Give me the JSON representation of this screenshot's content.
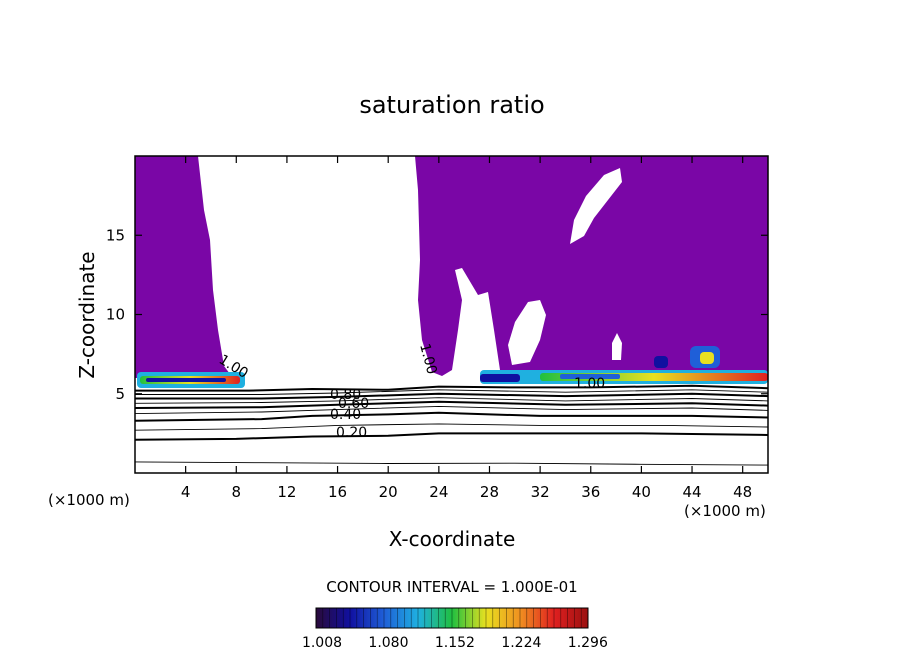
{
  "chart_data": {
    "type": "contour",
    "title": "saturation ratio",
    "xlabel": "X-coordinate",
    "ylabel": "Z-coordinate",
    "x_unit_left": "(×1000 m)",
    "x_unit_right": "(×1000 m)",
    "xlim": [
      0,
      50
    ],
    "ylim": [
      0,
      20
    ],
    "xticks": [
      4,
      8,
      12,
      16,
      20,
      24,
      28,
      32,
      36,
      40,
      44,
      48
    ],
    "yticks": [
      5,
      10,
      15
    ],
    "xtick_labels": [
      "4",
      "8",
      "12",
      "16",
      "20",
      "24",
      "28",
      "32",
      "36",
      "40",
      "44",
      "48"
    ],
    "ytick_labels": [
      "5",
      "10",
      "15"
    ],
    "contour_interval_text": "CONTOUR INTERVAL = 1.000E-01",
    "contour_labels": [
      "1.00",
      "1.00",
      "1.00",
      "0.80",
      "0.60",
      "0.40",
      "0.20"
    ],
    "contour_lines": [
      {
        "level": 0.1,
        "heavy": false,
        "points": [
          [
            0,
            0.7
          ],
          [
            10,
            0.65
          ],
          [
            20,
            0.6
          ],
          [
            30,
            0.62
          ],
          [
            40,
            0.55
          ],
          [
            50,
            0.5
          ]
        ]
      },
      {
        "level": 0.2,
        "heavy": true,
        "points": [
          [
            0,
            2.1
          ],
          [
            8,
            2.15
          ],
          [
            14,
            2.3
          ],
          [
            20,
            2.35
          ],
          [
            24,
            2.5
          ],
          [
            30,
            2.5
          ],
          [
            40,
            2.5
          ],
          [
            50,
            2.4
          ]
        ]
      },
      {
        "level": 0.3,
        "heavy": false,
        "points": [
          [
            0,
            2.7
          ],
          [
            10,
            2.8
          ],
          [
            16,
            3.0
          ],
          [
            24,
            3.1
          ],
          [
            32,
            3.0
          ],
          [
            42,
            3.0
          ],
          [
            50,
            2.9
          ]
        ]
      },
      {
        "level": 0.4,
        "heavy": true,
        "points": [
          [
            0,
            3.3
          ],
          [
            10,
            3.4
          ],
          [
            14,
            3.6
          ],
          [
            20,
            3.7
          ],
          [
            24,
            3.8
          ],
          [
            32,
            3.6
          ],
          [
            44,
            3.6
          ],
          [
            50,
            3.5
          ]
        ]
      },
      {
        "level": 0.5,
        "heavy": false,
        "points": [
          [
            0,
            3.75
          ],
          [
            10,
            3.85
          ],
          [
            16,
            4.0
          ],
          [
            24,
            4.2
          ],
          [
            34,
            4.0
          ],
          [
            44,
            4.1
          ],
          [
            50,
            3.95
          ]
        ]
      },
      {
        "level": 0.6,
        "heavy": true,
        "points": [
          [
            0,
            4.1
          ],
          [
            10,
            4.15
          ],
          [
            16,
            4.3
          ],
          [
            24,
            4.5
          ],
          [
            34,
            4.3
          ],
          [
            44,
            4.4
          ],
          [
            50,
            4.25
          ]
        ]
      },
      {
        "level": 0.7,
        "heavy": false,
        "points": [
          [
            0,
            4.4
          ],
          [
            10,
            4.45
          ],
          [
            16,
            4.55
          ],
          [
            24,
            4.75
          ],
          [
            34,
            4.55
          ],
          [
            44,
            4.7
          ],
          [
            50,
            4.55
          ]
        ]
      },
      {
        "level": 0.8,
        "heavy": true,
        "points": [
          [
            0,
            4.7
          ],
          [
            10,
            4.7
          ],
          [
            16,
            4.8
          ],
          [
            24,
            5.0
          ],
          [
            34,
            4.85
          ],
          [
            44,
            5.0
          ],
          [
            50,
            4.85
          ]
        ]
      },
      {
        "level": 0.9,
        "heavy": false,
        "points": [
          [
            0,
            4.95
          ],
          [
            10,
            4.95
          ],
          [
            16,
            5.05
          ],
          [
            24,
            5.25
          ],
          [
            34,
            5.1
          ],
          [
            44,
            5.25
          ],
          [
            50,
            5.1
          ]
        ]
      },
      {
        "level": 1.0,
        "heavy": true,
        "points": [
          [
            0,
            5.2
          ],
          [
            9,
            5.2
          ],
          [
            14,
            5.3
          ],
          [
            20,
            5.25
          ],
          [
            24,
            5.45
          ],
          [
            30,
            5.4
          ],
          [
            36,
            5.4
          ],
          [
            44,
            5.5
          ],
          [
            50,
            5.35
          ]
        ]
      }
    ],
    "colorbar": {
      "labels": [
        "1.008",
        "1.080",
        "1.152",
        "1.224",
        "1.296"
      ],
      "min": 1.008,
      "max": 1.32,
      "colors": [
        "#2a0a3a",
        "#1010a0",
        "#1f5fd8",
        "#1fb0e0",
        "#20c040",
        "#e8e020",
        "#f09020",
        "#e02020",
        "#9a1010"
      ]
    },
    "colors": {
      "supersaturated_fill": "#7a06a6",
      "white": "#ffffff",
      "line": "#000000"
    }
  }
}
